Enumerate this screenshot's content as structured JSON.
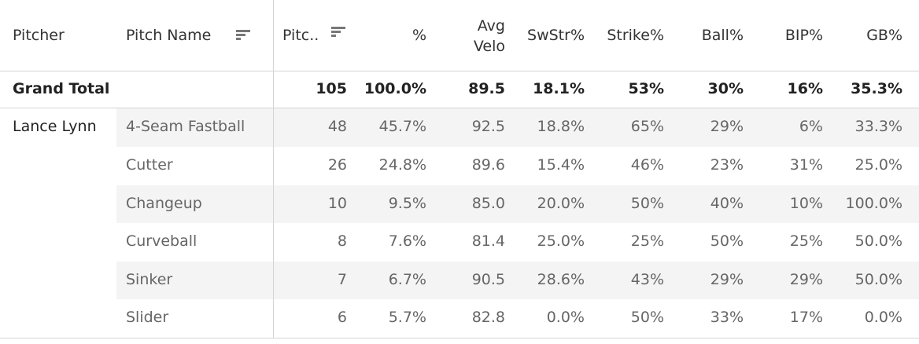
{
  "headers": {
    "pitcher": "Pitcher",
    "pitch_name": "Pitch Name",
    "pitches": "Pitc..",
    "pct": "%",
    "avg_velo_line1": "Avg",
    "avg_velo_line2": "Velo",
    "swstr": "SwStr%",
    "strike": "Strike%",
    "ball": "Ball%",
    "bip": "BIP%",
    "gb": "GB%"
  },
  "grand_total": {
    "label": "Grand Total",
    "pitches": "105",
    "pct": "100.0%",
    "avg_velo": "89.5",
    "swstr": "18.1%",
    "strike": "53%",
    "ball": "30%",
    "bip": "16%",
    "gb": "35.3%"
  },
  "pitcher_name": "Lance Lynn",
  "rows": [
    {
      "pitch": "4-Seam Fastball",
      "pitches": "48",
      "pct": "45.7%",
      "avg_velo": "92.5",
      "swstr": "18.8%",
      "strike": "65%",
      "ball": "29%",
      "bip": "6%",
      "gb": "33.3%"
    },
    {
      "pitch": "Cutter",
      "pitches": "26",
      "pct": "24.8%",
      "avg_velo": "89.6",
      "swstr": "15.4%",
      "strike": "46%",
      "ball": "23%",
      "bip": "31%",
      "gb": "25.0%"
    },
    {
      "pitch": "Changeup",
      "pitches": "10",
      "pct": "9.5%",
      "avg_velo": "85.0",
      "swstr": "20.0%",
      "strike": "50%",
      "ball": "40%",
      "bip": "10%",
      "gb": "100.0%"
    },
    {
      "pitch": "Curveball",
      "pitches": "8",
      "pct": "7.6%",
      "avg_velo": "81.4",
      "swstr": "25.0%",
      "strike": "25%",
      "ball": "50%",
      "bip": "25%",
      "gb": "50.0%"
    },
    {
      "pitch": "Sinker",
      "pitches": "7",
      "pct": "6.7%",
      "avg_velo": "90.5",
      "swstr": "28.6%",
      "strike": "43%",
      "ball": "29%",
      "bip": "29%",
      "gb": "50.0%"
    },
    {
      "pitch": "Slider",
      "pitches": "6",
      "pct": "5.7%",
      "avg_velo": "82.8",
      "swstr": "0.0%",
      "strike": "50%",
      "ball": "33%",
      "bip": "17%",
      "gb": "0.0%"
    }
  ],
  "icons": {
    "pitch_name_sort": "sort-descending-icon",
    "pitches_sort": "sort-descending-icon"
  }
}
